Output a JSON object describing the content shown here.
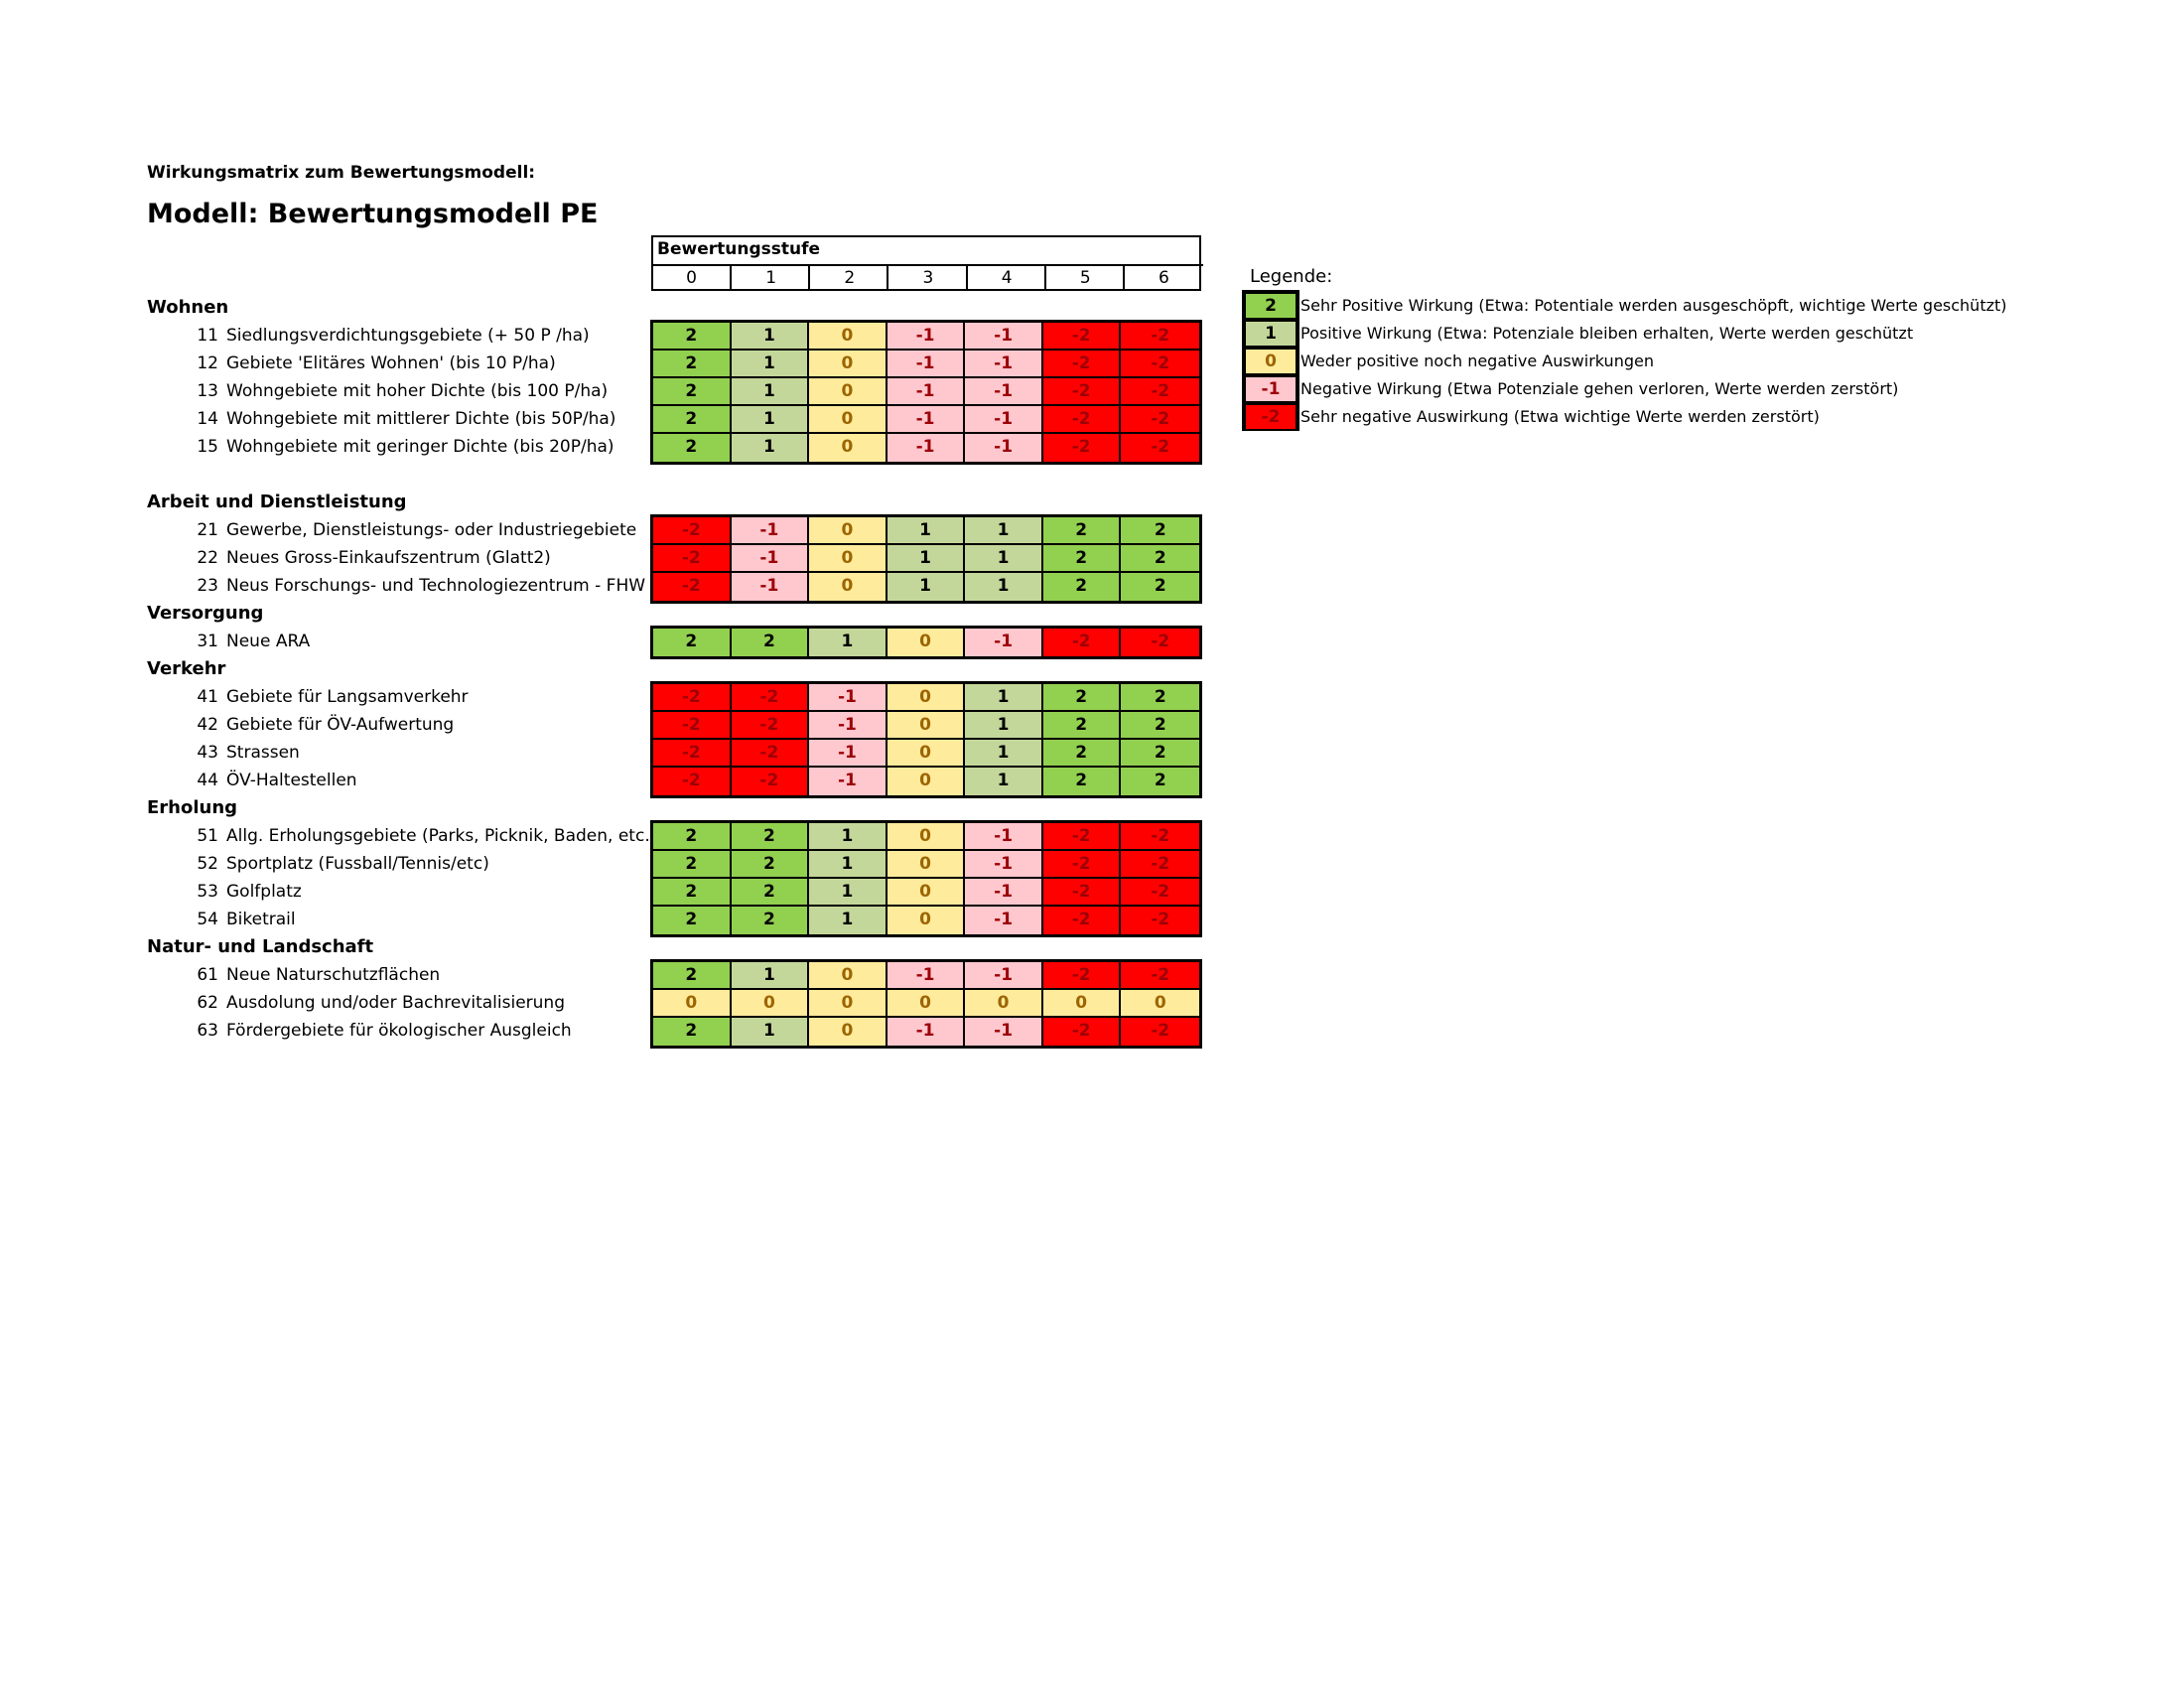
{
  "subtitle": "Wirkungsmatrix zum Bewertungsmodell:",
  "title": "Modell: Bewertungsmodell PE",
  "header": {
    "title": "Bewertungsstufe",
    "levels": [
      "0",
      "1",
      "2",
      "3",
      "4",
      "5",
      "6"
    ]
  },
  "colors": {
    "2": "#92d050",
    "1": "#c4d79b",
    "0": "#ffeb9c",
    "-1": "#ffc7ce",
    "-2": "#ff0000"
  },
  "text_colors": {
    "2": "#000000",
    "1": "#000000",
    "0": "#9c6500",
    "-1": "#9c0006",
    "-2": "#9c0006"
  },
  "categories": [
    {
      "label": "Wohnen",
      "rows": [
        {
          "num": "11",
          "label": "Siedlungsverdichtungsgebiete (+ 50 P /ha)",
          "values": [
            "2",
            "1",
            "0",
            "-1",
            "-1",
            "-2",
            "-2"
          ]
        },
        {
          "num": "12",
          "label": "Gebiete 'Elitäres Wohnen' (bis 10 P/ha)",
          "values": [
            "2",
            "1",
            "0",
            "-1",
            "-1",
            "-2",
            "-2"
          ]
        },
        {
          "num": "13",
          "label": "Wohngebiete mit hoher Dichte (bis 100 P/ha)",
          "values": [
            "2",
            "1",
            "0",
            "-1",
            "-1",
            "-2",
            "-2"
          ]
        },
        {
          "num": "14",
          "label": "Wohngebiete mit mittlerer Dichte (bis 50P/ha)",
          "values": [
            "2",
            "1",
            "0",
            "-1",
            "-1",
            "-2",
            "-2"
          ]
        },
        {
          "num": "15",
          "label": "Wohngebiete mit geringer Dichte (bis 20P/ha)",
          "values": [
            "2",
            "1",
            "0",
            "-1",
            "-1",
            "-2",
            "-2"
          ]
        }
      ]
    },
    {
      "label": "Arbeit und Dienstleistung",
      "rows": [
        {
          "num": "21",
          "label": "Gewerbe, Dienstleistungs- oder Industriegebiete",
          "values": [
            "-2",
            "-1",
            "0",
            "1",
            "1",
            "2",
            "2"
          ]
        },
        {
          "num": "22",
          "label": "Neues Gross-Einkaufszentrum (Glatt2)",
          "values": [
            "-2",
            "-1",
            "0",
            "1",
            "1",
            "2",
            "2"
          ]
        },
        {
          "num": "23",
          "label": "Neus Forschungs- und Technologiezentrum - FHW",
          "values": [
            "-2",
            "-1",
            "0",
            "1",
            "1",
            "2",
            "2"
          ]
        }
      ]
    },
    {
      "label": "Versorgung",
      "rows": [
        {
          "num": "31",
          "label": "Neue ARA",
          "values": [
            "2",
            "2",
            "1",
            "0",
            "-1",
            "-2",
            "-2"
          ]
        }
      ]
    },
    {
      "label": "Verkehr",
      "rows": [
        {
          "num": "41",
          "label": "Gebiete für Langsamverkehr",
          "values": [
            "-2",
            "-2",
            "-1",
            "0",
            "1",
            "2",
            "2"
          ]
        },
        {
          "num": "42",
          "label": "Gebiete für ÖV-Aufwertung",
          "values": [
            "-2",
            "-2",
            "-1",
            "0",
            "1",
            "2",
            "2"
          ]
        },
        {
          "num": "43",
          "label": "Strassen",
          "values": [
            "-2",
            "-2",
            "-1",
            "0",
            "1",
            "2",
            "2"
          ]
        },
        {
          "num": "44",
          "label": "ÖV-Haltestellen",
          "values": [
            "-2",
            "-2",
            "-1",
            "0",
            "1",
            "2",
            "2"
          ]
        }
      ]
    },
    {
      "label": "Erholung",
      "rows": [
        {
          "num": "51",
          "label": "Allg. Erholungsgebiete (Parks, Picknik, Baden, etc.)",
          "values": [
            "2",
            "2",
            "1",
            "0",
            "-1",
            "-2",
            "-2"
          ]
        },
        {
          "num": "52",
          "label": "Sportplatz (Fussball/Tennis/etc)",
          "values": [
            "2",
            "2",
            "1",
            "0",
            "-1",
            "-2",
            "-2"
          ]
        },
        {
          "num": "53",
          "label": "Golfplatz",
          "values": [
            "2",
            "2",
            "1",
            "0",
            "-1",
            "-2",
            "-2"
          ]
        },
        {
          "num": "54",
          "label": "Biketrail",
          "values": [
            "2",
            "2",
            "1",
            "0",
            "-1",
            "-2",
            "-2"
          ]
        }
      ]
    },
    {
      "label": "Natur- und Landschaft",
      "rows": [
        {
          "num": "61",
          "label": "Neue Naturschutzflächen",
          "values": [
            "2",
            "1",
            "0",
            "-1",
            "-1",
            "-2",
            "-2"
          ]
        },
        {
          "num": "62",
          "label": "Ausdolung und/oder Bachrevitalisierung",
          "values": [
            "0",
            "0",
            "0",
            "0",
            "0",
            "0",
            "0"
          ]
        },
        {
          "num": "63",
          "label": "Fördergebiete für ökologischer Ausgleich",
          "values": [
            "2",
            "1",
            "0",
            "-1",
            "-1",
            "-2",
            "-2"
          ]
        }
      ]
    }
  ],
  "legend": {
    "title": "Legende:",
    "items": [
      {
        "value": "2",
        "text": "Sehr Positive Wirkung (Etwa: Potentiale werden ausgeschöpft, wichtige Werte geschützt)"
      },
      {
        "value": "1",
        "text": "Positive Wirkung (Etwa: Potenziale bleiben erhalten, Werte werden geschützt"
      },
      {
        "value": "0",
        "text": "Weder positive noch negative Auswirkungen"
      },
      {
        "value": "-1",
        "text": "Negative Wirkung (Etwa Potenziale gehen verloren, Werte werden zerstört)"
      },
      {
        "value": "-2",
        "text": "Sehr negative Auswirkung (Etwa wichtige Werte werden zerstört)"
      }
    ]
  }
}
